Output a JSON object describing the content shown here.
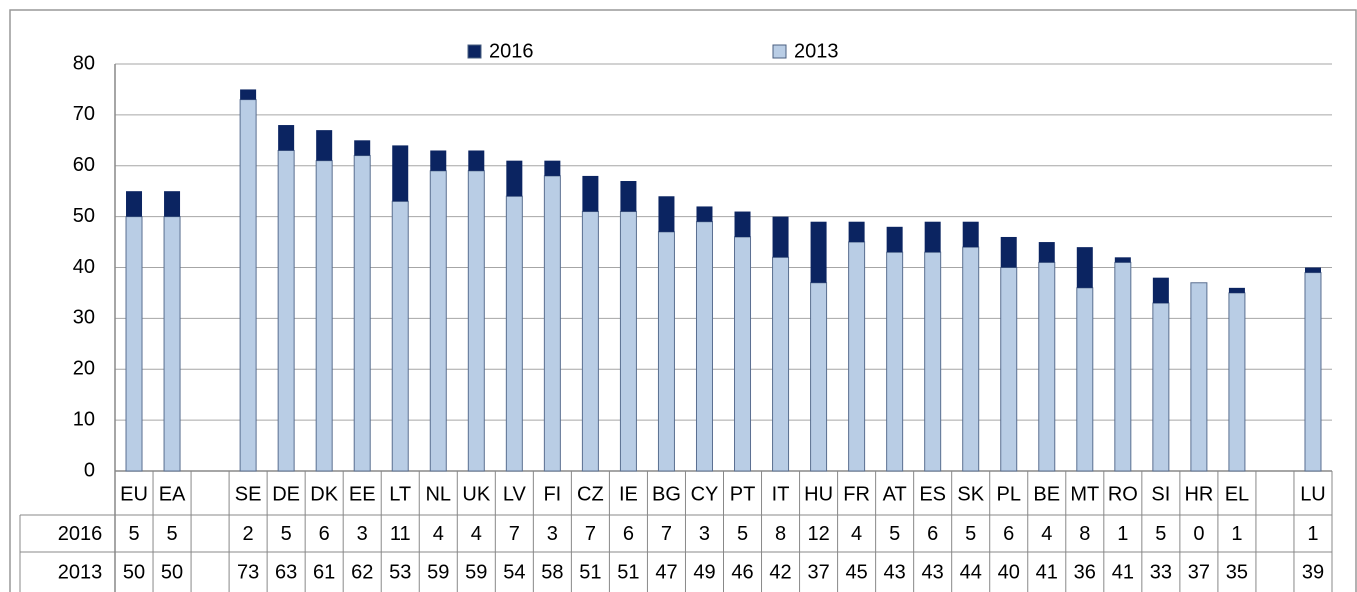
{
  "chart_data": {
    "type": "stacked_bar",
    "categories": [
      "EU",
      "EA",
      null,
      "SE",
      "DE",
      "DK",
      "EE",
      "LT",
      "NL",
      "UK",
      "LV",
      "FI",
      "CZ",
      "IE",
      "BG",
      "CY",
      "PT",
      "IT",
      "HU",
      "FR",
      "AT",
      "ES",
      "SK",
      "PL",
      "BE",
      "MT",
      "RO",
      "SI",
      "HR",
      "EL",
      null,
      "LU"
    ],
    "series": [
      {
        "name": "2013",
        "color": "#b9cde5",
        "values": [
          50,
          50,
          null,
          73,
          63,
          61,
          62,
          53,
          59,
          59,
          54,
          58,
          51,
          51,
          47,
          49,
          46,
          42,
          37,
          45,
          43,
          43,
          44,
          40,
          41,
          36,
          41,
          33,
          37,
          35,
          null,
          39
        ]
      },
      {
        "name": "2016",
        "color": "#0b2461",
        "values": [
          5,
          5,
          null,
          2,
          5,
          6,
          3,
          11,
          4,
          4,
          7,
          3,
          7,
          6,
          7,
          3,
          5,
          8,
          12,
          4,
          5,
          6,
          5,
          6,
          4,
          8,
          1,
          5,
          0,
          1,
          null,
          1
        ]
      }
    ],
    "ylim": [
      0,
      80
    ],
    "yticks": [
      0,
      10,
      20,
      30,
      40,
      50,
      60,
      70,
      80
    ],
    "grid": true,
    "legend": "top"
  }
}
